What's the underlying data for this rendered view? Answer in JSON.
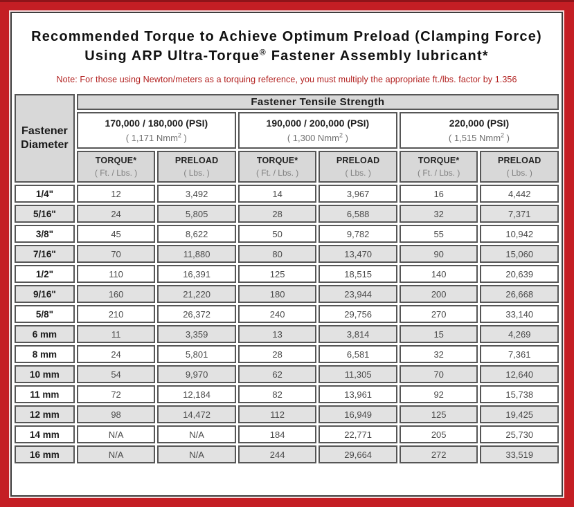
{
  "title": {
    "line1": "Recommended Torque to Achieve Optimum Preload (Clamping Force)",
    "line2_pre": "Using ARP Ultra-Torque",
    "registered_mark": "®",
    "line2_post": " Fastener Assembly lubricant*"
  },
  "note": "Note: For those using Newton/meters as a torquing reference, you must multiply the appropriate ft./lbs. factor by 1.356",
  "colors": {
    "frame_red": "#c41e24",
    "frame_top_strip": "#8e1419",
    "note_red": "#b2201f",
    "page_border": "#3d3d3d",
    "cell_border": "#565656",
    "header_gray": "#d8d8d8",
    "shaded_row_gray": "#e2e2e2"
  },
  "table": {
    "corner_header": {
      "line1": "Fastener",
      "line2": "Diameter"
    },
    "tensile_strength_header": "Fastener Tensile Strength",
    "strength_groups": [
      {
        "psi": "170,000 / 180,000 (PSI)",
        "nmm_pre": "( 1,171 Nmm",
        "nmm_sup": "2",
        "nmm_post": " )"
      },
      {
        "psi": "190,000 / 200,000 (PSI)",
        "nmm_pre": "( 1,300 Nmm",
        "nmm_sup": "2",
        "nmm_post": " )"
      },
      {
        "psi": "220,000 (PSI)",
        "nmm_pre": "( 1,515 Nmm",
        "nmm_sup": "2",
        "nmm_post": " )"
      }
    ],
    "torque_label": "TORQUE*",
    "torque_unit": "( Ft. / Lbs. )",
    "preload_label": "PRELOAD",
    "preload_unit": "( Lbs. )",
    "rows": [
      {
        "diameter": "1/4\"",
        "values": [
          "12",
          "3,492",
          "14",
          "3,967",
          "16",
          "4,442"
        ]
      },
      {
        "diameter": "5/16\"",
        "values": [
          "24",
          "5,805",
          "28",
          "6,588",
          "32",
          "7,371"
        ]
      },
      {
        "diameter": "3/8\"",
        "values": [
          "45",
          "8,622",
          "50",
          "9,782",
          "55",
          "10,942"
        ]
      },
      {
        "diameter": "7/16\"",
        "values": [
          "70",
          "11,880",
          "80",
          "13,470",
          "90",
          "15,060"
        ]
      },
      {
        "diameter": "1/2\"",
        "values": [
          "110",
          "16,391",
          "125",
          "18,515",
          "140",
          "20,639"
        ]
      },
      {
        "diameter": "9/16\"",
        "values": [
          "160",
          "21,220",
          "180",
          "23,944",
          "200",
          "26,668"
        ]
      },
      {
        "diameter": "5/8\"",
        "values": [
          "210",
          "26,372",
          "240",
          "29,756",
          "270",
          "33,140"
        ]
      },
      {
        "diameter": "6 mm",
        "values": [
          "11",
          "3,359",
          "13",
          "3,814",
          "15",
          "4,269"
        ]
      },
      {
        "diameter": "8 mm",
        "values": [
          "24",
          "5,801",
          "28",
          "6,581",
          "32",
          "7,361"
        ]
      },
      {
        "diameter": "10 mm",
        "values": [
          "54",
          "9,970",
          "62",
          "11,305",
          "70",
          "12,640"
        ]
      },
      {
        "diameter": "11 mm",
        "values": [
          "72",
          "12,184",
          "82",
          "13,961",
          "92",
          "15,738"
        ]
      },
      {
        "diameter": "12 mm",
        "values": [
          "98",
          "14,472",
          "112",
          "16,949",
          "125",
          "19,425"
        ]
      },
      {
        "diameter": "14 mm",
        "values": [
          "N/A",
          "N/A",
          "184",
          "22,771",
          "205",
          "25,730"
        ]
      },
      {
        "diameter": "16 mm",
        "values": [
          "N/A",
          "N/A",
          "244",
          "29,664",
          "272",
          "33,519"
        ]
      }
    ]
  }
}
